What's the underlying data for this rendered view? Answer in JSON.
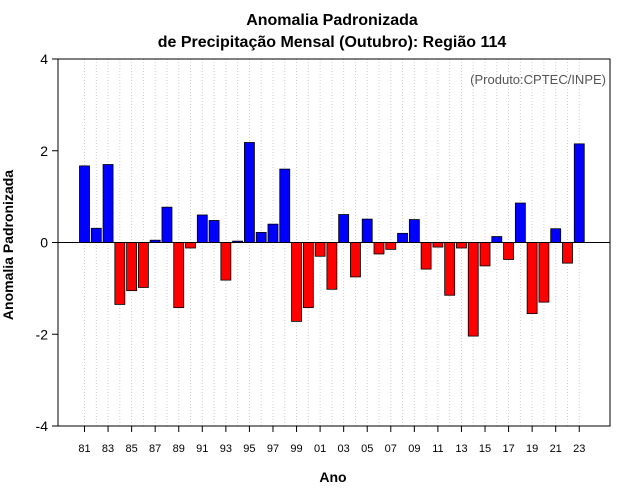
{
  "chart_data": {
    "type": "bar",
    "title_line1": "Anomalia Padronizada",
    "title_line2": "de Precipitação Mensal (Outubro): Região 114",
    "xlabel": "Ano",
    "ylabel": "Anomalia Padronizada",
    "credit": "(Produto:CPTEC/INPE)",
    "ylim": [
      -4,
      4
    ],
    "yticks": [
      -4,
      -2,
      0,
      2,
      4
    ],
    "ytick_labels": [
      "-4",
      "-2",
      "0",
      "2",
      "4"
    ],
    "grid": "vertical dotted",
    "positive_color": "#0000ff",
    "negative_color": "#ff0000",
    "categories": [
      "81",
      "82",
      "83",
      "84",
      "85",
      "86",
      "87",
      "88",
      "89",
      "90",
      "91",
      "92",
      "93",
      "94",
      "95",
      "96",
      "97",
      "98",
      "99",
      "00",
      "01",
      "02",
      "03",
      "04",
      "05",
      "06",
      "07",
      "08",
      "09",
      "10",
      "11",
      "12",
      "13",
      "14",
      "15",
      "16",
      "17",
      "18",
      "19",
      "20",
      "21",
      "22",
      "23"
    ],
    "xtick_labels": [
      "81",
      "83",
      "85",
      "87",
      "89",
      "91",
      "93",
      "95",
      "97",
      "99",
      "01",
      "03",
      "05",
      "07",
      "09",
      "11",
      "13",
      "15",
      "17",
      "19",
      "21",
      "23"
    ],
    "values": [
      1.67,
      0.31,
      1.7,
      -1.35,
      -1.05,
      -0.98,
      0.05,
      0.77,
      -1.42,
      -0.12,
      0.6,
      0.48,
      -0.82,
      0.03,
      2.18,
      0.22,
      0.4,
      1.6,
      -1.72,
      -1.42,
      -0.3,
      -1.02,
      0.61,
      -0.75,
      0.51,
      -0.25,
      -0.15,
      0.2,
      0.5,
      -0.58,
      -0.1,
      -1.15,
      -0.12,
      -2.04,
      -0.51,
      0.13,
      -0.37,
      0.86,
      -1.55,
      -1.3,
      0.3,
      -0.45,
      2.15
    ]
  }
}
